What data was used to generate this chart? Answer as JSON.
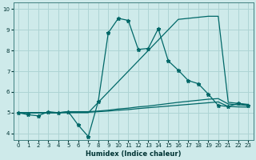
{
  "xlabel": "Humidex (Indice chaleur)",
  "background_color": "#ceeaea",
  "grid_color": "#aed4d4",
  "line_color": "#006868",
  "xlim": [
    -0.5,
    23.5
  ],
  "ylim": [
    3.7,
    10.3
  ],
  "yticks": [
    4,
    5,
    6,
    7,
    8,
    9,
    10
  ],
  "xticks": [
    0,
    1,
    2,
    3,
    4,
    5,
    6,
    7,
    8,
    9,
    10,
    11,
    12,
    13,
    14,
    15,
    16,
    17,
    18,
    19,
    20,
    21,
    22,
    23
  ],
  "series_main": {
    "x": [
      0,
      1,
      2,
      3,
      4,
      5,
      6,
      7,
      8,
      9,
      10,
      11,
      12,
      13,
      14,
      15,
      16,
      17,
      18,
      19,
      20,
      21,
      22,
      23
    ],
    "y": [
      5.0,
      4.9,
      4.85,
      5.05,
      5.0,
      5.05,
      4.4,
      3.85,
      5.55,
      8.85,
      9.55,
      9.45,
      8.05,
      8.1,
      9.05,
      7.5,
      7.05,
      6.55,
      6.4,
      5.9,
      5.35,
      5.3,
      5.45,
      5.35
    ]
  },
  "series_diag": {
    "x": [
      0,
      1,
      2,
      3,
      4,
      5,
      6,
      7,
      8,
      9,
      10,
      11,
      12,
      13,
      14,
      15,
      16,
      17,
      18,
      19,
      20,
      21,
      22,
      23
    ],
    "y": [
      5.0,
      5.0,
      5.0,
      5.0,
      5.0,
      5.0,
      5.0,
      5.0,
      5.5,
      6.0,
      6.5,
      7.0,
      7.5,
      8.0,
      8.5,
      9.0,
      9.5,
      9.55,
      9.6,
      9.65,
      9.65,
      5.5,
      5.45,
      5.4
    ]
  },
  "series_flat1": {
    "x": [
      0,
      1,
      2,
      3,
      4,
      5,
      6,
      7,
      8,
      9,
      10,
      11,
      12,
      13,
      14,
      15,
      16,
      17,
      18,
      19,
      20,
      21,
      22,
      23
    ],
    "y": [
      5.0,
      5.0,
      5.0,
      5.0,
      5.0,
      5.05,
      5.05,
      5.05,
      5.08,
      5.12,
      5.18,
      5.22,
      5.28,
      5.32,
      5.38,
      5.44,
      5.5,
      5.55,
      5.6,
      5.65,
      5.68,
      5.42,
      5.38,
      5.35
    ]
  },
  "series_flat2": {
    "x": [
      0,
      1,
      2,
      3,
      4,
      5,
      6,
      7,
      8,
      9,
      10,
      11,
      12,
      13,
      14,
      15,
      16,
      17,
      18,
      19,
      20,
      21,
      22,
      23
    ],
    "y": [
      5.0,
      5.0,
      5.0,
      5.0,
      5.0,
      5.02,
      5.02,
      5.02,
      5.05,
      5.08,
      5.12,
      5.15,
      5.2,
      5.24,
      5.28,
      5.32,
      5.36,
      5.4,
      5.44,
      5.48,
      5.52,
      5.3,
      5.28,
      5.27
    ]
  }
}
